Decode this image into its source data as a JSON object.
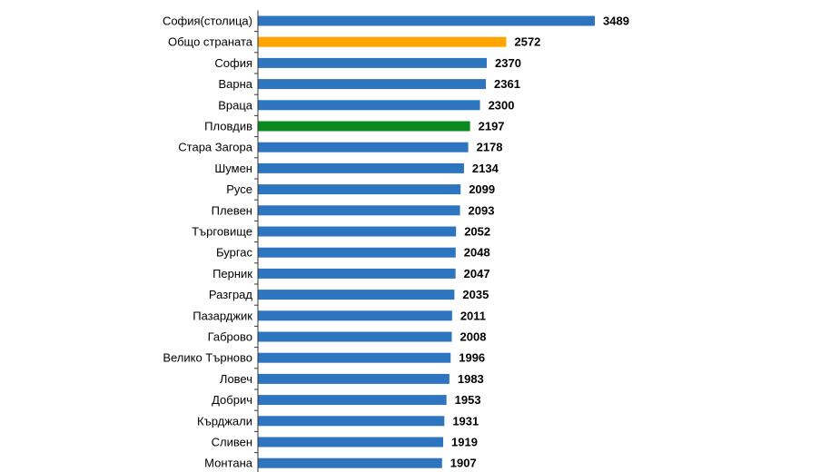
{
  "chart_data": {
    "type": "bar",
    "orientation": "horizontal",
    "categories": [
      "София(столица)",
      "Общо страната",
      "София",
      "Варна",
      "Враца",
      "Пловдив",
      "Стара Загора",
      "Шумен",
      "Русе",
      "Плевен",
      "Търговище",
      "Бургас",
      "Перник",
      "Разград",
      "Пазарджик",
      "Габрово",
      "Велико Търново",
      "Ловеч",
      "Добрич",
      "Кърджали",
      "Сливен",
      "Монтана"
    ],
    "values": [
      3489,
      2572,
      2370,
      2361,
      2300,
      2197,
      2178,
      2134,
      2099,
      2093,
      2052,
      2048,
      2047,
      2035,
      2011,
      2008,
      1996,
      1983,
      1953,
      1931,
      1919,
      1907
    ],
    "value_labels": [
      "3489",
      "2572",
      "2370",
      "2361",
      "2300",
      "2197",
      "2178",
      "2134",
      "2099",
      "2093",
      "2052",
      "2048",
      "2047",
      "2035",
      "2011",
      "2008",
      "1996",
      "1983",
      "1953",
      "1931",
      "1919",
      "1907"
    ],
    "bar_colors": [
      "#2e75c0",
      "#ffa500",
      "#2e75c0",
      "#2e75c0",
      "#2e75c0",
      "#0a8a1e",
      "#2e75c0",
      "#2e75c0",
      "#2e75c0",
      "#2e75c0",
      "#2e75c0",
      "#2e75c0",
      "#2e75c0",
      "#2e75c0",
      "#2e75c0",
      "#2e75c0",
      "#2e75c0",
      "#2e75c0",
      "#2e75c0",
      "#2e75c0",
      "#2e75c0",
      "#2e75c0"
    ],
    "xlim": [
      0,
      3489
    ],
    "title": "",
    "xlabel": "",
    "ylabel": "",
    "grid": false,
    "legend": "none"
  }
}
